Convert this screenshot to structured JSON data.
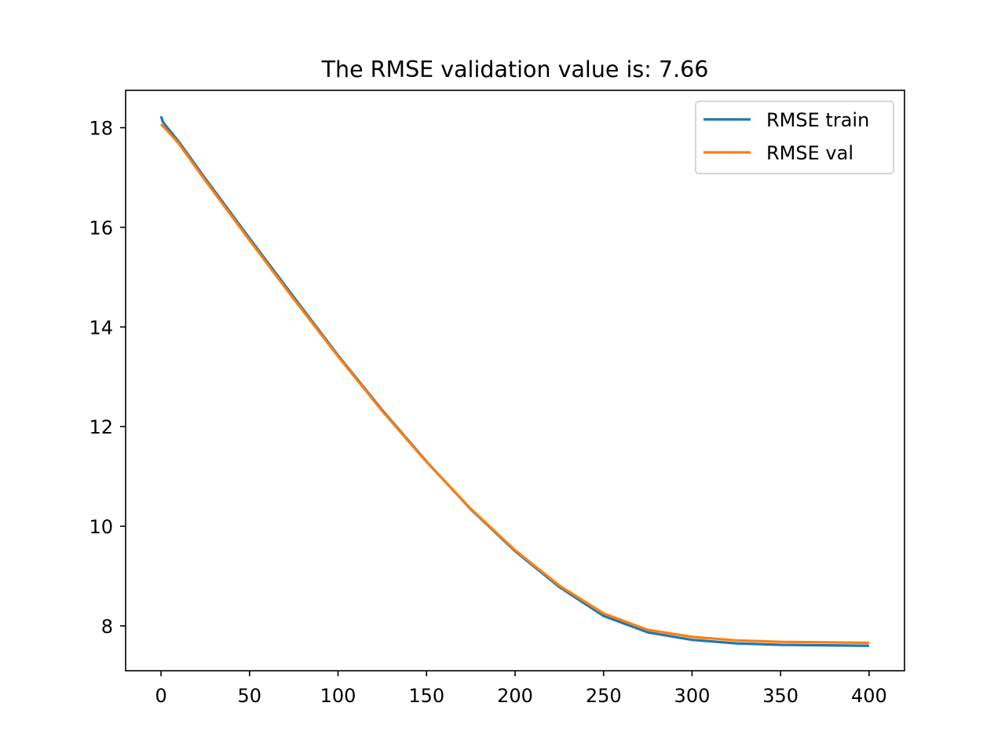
{
  "chart_data": {
    "type": "line",
    "title": "The RMSE validation value is: 7.66",
    "xlabel": "",
    "ylabel": "",
    "xlim": [
      -20,
      420
    ],
    "ylim": [
      7.1,
      18.75
    ],
    "x_ticks": [
      0,
      50,
      100,
      150,
      200,
      250,
      300,
      350,
      400
    ],
    "y_ticks": [
      8,
      10,
      12,
      14,
      16,
      18
    ],
    "grid": false,
    "legend_position": "top-right",
    "series": [
      {
        "name": "RMSE train",
        "color": "#1f77b4",
        "x": [
          0,
          1,
          2,
          10,
          25,
          50,
          75,
          100,
          125,
          150,
          175,
          200,
          225,
          250,
          275,
          300,
          325,
          350,
          375,
          400
        ],
        "y": [
          18.23,
          18.12,
          18.07,
          17.72,
          16.98,
          15.78,
          14.6,
          13.43,
          12.33,
          11.3,
          10.34,
          9.5,
          8.78,
          8.2,
          7.87,
          7.72,
          7.65,
          7.62,
          7.61,
          7.6
        ]
      },
      {
        "name": "RMSE val",
        "color": "#ff7f0e",
        "x": [
          0,
          1,
          2,
          10,
          25,
          50,
          75,
          100,
          125,
          150,
          175,
          200,
          225,
          250,
          275,
          300,
          325,
          350,
          375,
          400
        ],
        "y": [
          18.07,
          18.03,
          18.0,
          17.68,
          16.94,
          15.74,
          14.56,
          13.41,
          12.31,
          11.29,
          10.35,
          9.52,
          8.81,
          8.25,
          7.92,
          7.78,
          7.71,
          7.68,
          7.67,
          7.66
        ]
      }
    ]
  }
}
